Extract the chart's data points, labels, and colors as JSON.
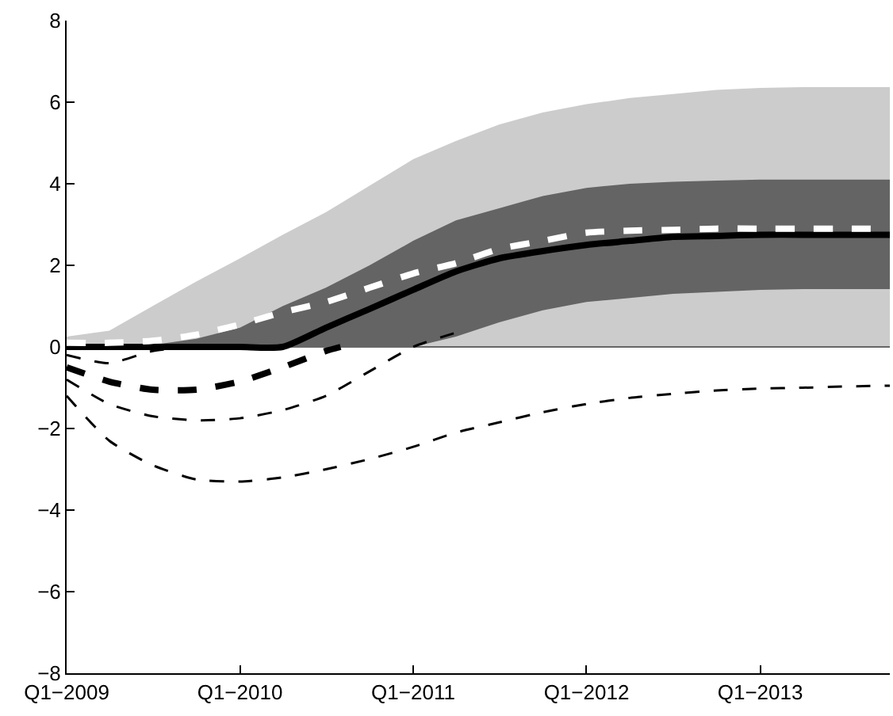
{
  "chart_data": {
    "type": "line",
    "x": [
      "2009-01",
      "2009-04",
      "2009-07",
      "2009-10",
      "2010-01",
      "2010-04",
      "2010-07",
      "2010-10",
      "2011-01",
      "2011-04",
      "2011-07",
      "2011-10",
      "2012-01",
      "2012-04",
      "2012-07",
      "2012-10",
      "2013-01",
      "2013-04",
      "2013-07",
      "2013-10"
    ],
    "series": [
      {
        "color": "#000000",
        "line_style": "dashed",
        "x": [
          "2009-01",
          "2009-04",
          "2009-07",
          "2009-10"
        ],
        "values": [
          -0.2,
          -0.4,
          -0.1,
          0
        ]
      },
      {
        "color": "#000000",
        "line_style": "dashed",
        "x": [
          "2009-01",
          "2009-04",
          "2009-07",
          "2009-10",
          "2010-01",
          "2010-04",
          "2010-07",
          "2010-08"
        ],
        "values": [
          -0.5,
          -0.85,
          -1.05,
          -1.05,
          -0.85,
          -0.5,
          -0.1,
          0
        ]
      },
      {
        "color": "#000000",
        "line_style": "dashed",
        "x": [
          "2009-01",
          "2009-04",
          "2009-07",
          "2009-10",
          "2010-01",
          "2010-04",
          "2010-07",
          "2010-10",
          "2011-01",
          "2011-04"
        ],
        "values": [
          -0.8,
          -1.4,
          -1.7,
          -1.8,
          -1.75,
          -1.55,
          -1.2,
          -0.6,
          0,
          0.35
        ]
      },
      {
        "color": "#000000",
        "line_style": "dashed",
        "values": [
          -1.2,
          -2.3,
          -2.9,
          -3.25,
          -3.3,
          -3.2,
          -3.0,
          -2.75,
          -2.45,
          -2.1,
          -1.85,
          -1.6,
          -1.4,
          -1.25,
          -1.15,
          -1.07,
          -1.02,
          -1.0,
          -0.97,
          -0.95
        ]
      },
      {
        "color": "#000000",
        "line_style": "solid",
        "values": [
          0,
          0,
          0,
          0,
          0,
          0,
          0.47,
          0.93,
          1.4,
          1.85,
          2.17,
          2.35,
          2.5,
          2.6,
          2.7,
          2.72,
          2.75,
          2.75,
          2.75,
          2.75
        ],
        "lower": [
          0,
          0,
          0,
          0,
          0,
          0,
          0,
          0,
          0,
          0.25,
          0.6,
          0.9,
          1.1,
          1.2,
          1.3,
          1.35,
          1.4,
          1.42,
          1.42,
          1.42
        ],
        "upper": [
          0,
          0,
          0.05,
          0.2,
          0.47,
          1.0,
          1.45,
          2.0,
          2.6,
          3.1,
          3.4,
          3.7,
          3.9,
          4.0,
          4.05,
          4.08,
          4.1,
          4.1,
          4.1,
          4.1
        ]
      },
      {
        "color": "#ffffff",
        "line_style": "dashed",
        "values": [
          0.1,
          0.1,
          0.15,
          0.3,
          0.55,
          0.85,
          1.1,
          1.45,
          1.8,
          2.05,
          2.4,
          2.6,
          2.8,
          2.85,
          2.87,
          2.9,
          2.9,
          2.9,
          2.9,
          2.9
        ],
        "lower": [
          0,
          0,
          0,
          0,
          0,
          0,
          0,
          0,
          0,
          0,
          0,
          0,
          0,
          0,
          0,
          0,
          0,
          0,
          0,
          0
        ],
        "upper": [
          0.25,
          0.4,
          1.0,
          1.6,
          2.17,
          2.75,
          3.3,
          3.95,
          4.6,
          5.05,
          5.45,
          5.75,
          5.95,
          6.1,
          6.2,
          6.3,
          6.35,
          6.37,
          6.37,
          6.37
        ]
      }
    ],
    "xlim": [
      "2009-01",
      "2013-10"
    ],
    "xticks": [
      {
        "value": "2009-01",
        "label": "Q1−2009"
      },
      {
        "value": "2010-01",
        "label": "Q1−2010"
      },
      {
        "value": "2011-01",
        "label": "Q1−2011"
      },
      {
        "value": "2012-01",
        "label": "Q1−2012"
      },
      {
        "value": "2013-01",
        "label": "Q1−2013"
      }
    ],
    "ylim": [
      -8,
      8
    ],
    "yticks": [
      {
        "value": -8,
        "label": "−8"
      },
      {
        "value": -6,
        "label": "−6"
      },
      {
        "value": -4,
        "label": "−4"
      },
      {
        "value": -2,
        "label": "−2"
      },
      0,
      2,
      4,
      6,
      8
    ],
    "ref_lines": [
      {
        "axis": "y",
        "value": 0,
        "color": "#666666"
      }
    ],
    "marker": "none"
  }
}
